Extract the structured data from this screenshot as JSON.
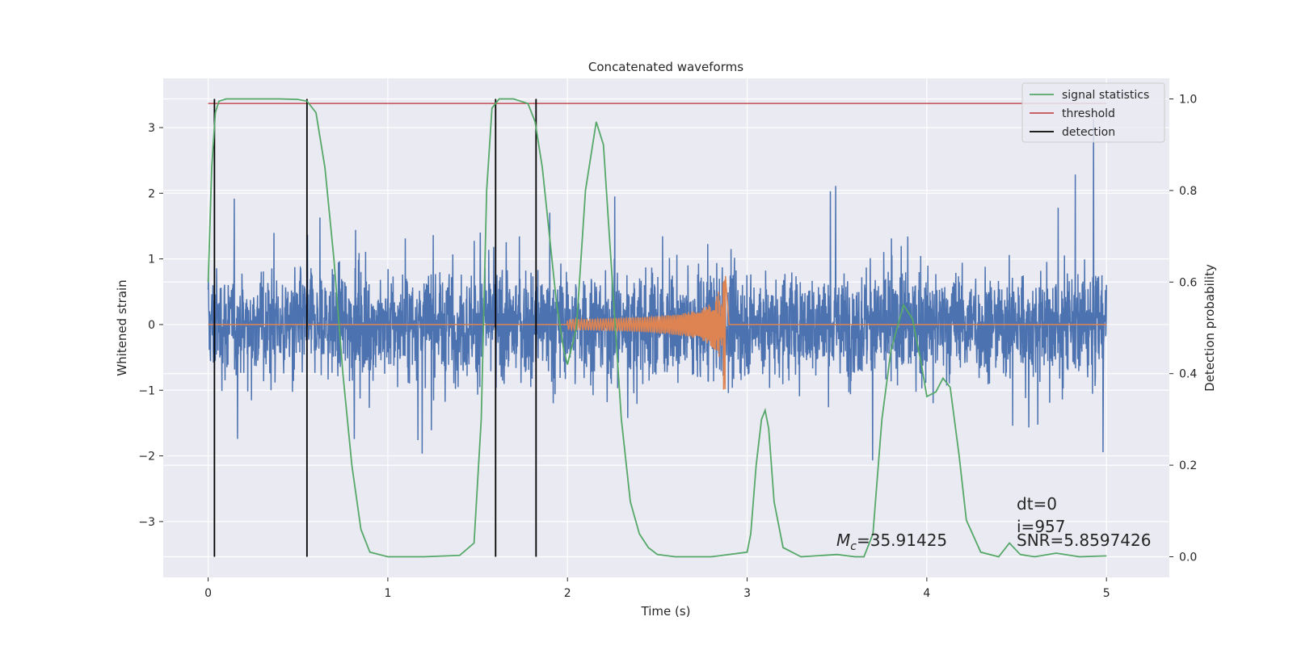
{
  "chart_data": {
    "type": "line",
    "title": "Concatenated waveforms",
    "xlabel": "Time (s)",
    "ylabel": "Whitened strain",
    "y2label": "Detection probability",
    "xlim": [
      -0.25,
      5.35
    ],
    "ylim": [
      -3.85,
      3.75
    ],
    "y2lim": [
      -0.045,
      1.045
    ],
    "xticks": [
      0,
      1,
      2,
      3,
      4,
      5
    ],
    "yticks": [
      -3,
      -2,
      -1,
      0,
      1,
      2,
      3
    ],
    "y2ticks": [
      0.0,
      0.2,
      0.4,
      0.6,
      0.8,
      1.0
    ],
    "grid": true,
    "legend_position": "top-right",
    "legend": [
      {
        "label": "signal statistics",
        "color": "#55a868"
      },
      {
        "label": "threshold",
        "color": "#c44e52"
      },
      {
        "label": "detection",
        "color": "#000000"
      }
    ],
    "colors": {
      "noise": "#4c72b0",
      "waveform": "#dd8452",
      "signal_statistics": "#55a868",
      "threshold": "#c44e52",
      "detection": "#000000"
    },
    "noise": {
      "x_range": [
        0,
        5
      ],
      "typical_amplitude": 0.75,
      "max_abs": 3.4
    },
    "waveform": {
      "x_range": [
        0,
        5
      ],
      "chirp_start": 2.0,
      "chirp_peak": 2.87,
      "start_amplitude": 0.08,
      "peak_amplitude": 1.3
    },
    "threshold": {
      "value": 0.99,
      "x_range": [
        0,
        5
      ]
    },
    "detections_x": [
      0.035,
      0.55,
      1.6,
      1.825
    ],
    "signal_statistics": {
      "x": [
        0,
        0.02,
        0.04,
        0.06,
        0.1,
        0.2,
        0.4,
        0.5,
        0.55,
        0.6,
        0.65,
        0.7,
        0.75,
        0.8,
        0.85,
        0.9,
        1.0,
        1.2,
        1.4,
        1.48,
        1.52,
        1.55,
        1.58,
        1.62,
        1.7,
        1.78,
        1.82,
        1.86,
        1.9,
        1.94,
        1.98,
        2.0,
        2.05,
        2.1,
        2.16,
        2.2,
        2.25,
        2.3,
        2.35,
        2.4,
        2.45,
        2.5,
        2.6,
        2.8,
        3.0,
        3.02,
        3.05,
        3.08,
        3.1,
        3.12,
        3.15,
        3.2,
        3.3,
        3.5,
        3.6,
        3.65,
        3.7,
        3.75,
        3.8,
        3.87,
        3.92,
        3.97,
        4.0,
        4.05,
        4.09,
        4.13,
        4.18,
        4.22,
        4.3,
        4.4,
        4.46,
        4.52,
        4.6,
        4.72,
        4.85,
        5.0
      ],
      "y": [
        0.6,
        0.85,
        0.97,
        0.995,
        1.0,
        1.0,
        1.0,
        0.999,
        0.995,
        0.97,
        0.85,
        0.65,
        0.4,
        0.2,
        0.06,
        0.01,
        0.0,
        0.0,
        0.003,
        0.03,
        0.3,
        0.8,
        0.98,
        1.0,
        1.0,
        0.99,
        0.95,
        0.85,
        0.7,
        0.55,
        0.45,
        0.42,
        0.5,
        0.8,
        0.95,
        0.9,
        0.6,
        0.3,
        0.12,
        0.05,
        0.02,
        0.005,
        0.0,
        0.0,
        0.01,
        0.05,
        0.2,
        0.3,
        0.32,
        0.28,
        0.12,
        0.02,
        0.0,
        0.005,
        0.0,
        0.0,
        0.05,
        0.3,
        0.45,
        0.55,
        0.52,
        0.42,
        0.35,
        0.36,
        0.39,
        0.37,
        0.22,
        0.08,
        0.01,
        0.0,
        0.03,
        0.005,
        0.0,
        0.008,
        0.0,
        0.002
      ]
    },
    "annotations": {
      "mc_label": "M",
      "mc_sub": "c",
      "mc_value": "=35.91425",
      "dt": "dt=0",
      "i": "i=957",
      "snr": "SNR=5.8597426"
    }
  }
}
